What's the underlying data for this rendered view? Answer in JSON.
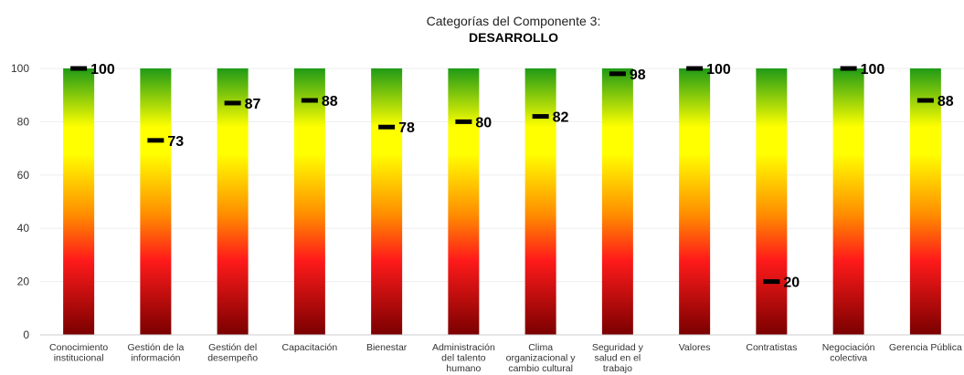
{
  "chart_data": {
    "type": "bar",
    "title": "Categorías del Componente 3:",
    "subtitle": "DESARROLLO",
    "xlabel": "",
    "ylabel": "",
    "ylim": [
      0,
      100
    ],
    "yticks": [
      0,
      20,
      40,
      60,
      80,
      100
    ],
    "grid": true,
    "legend": "none",
    "categories": [
      [
        "Conocimiento",
        "institucional"
      ],
      [
        "Gestión de la",
        "información"
      ],
      [
        "Gestión del",
        "desempeño"
      ],
      [
        "Capacitación"
      ],
      [
        "Bienestar"
      ],
      [
        "Administración",
        "del talento",
        "humano"
      ],
      [
        "Clima",
        "organizacional y",
        "cambio cultural"
      ],
      [
        "Seguridad y",
        "salud en el",
        "trabajo"
      ],
      [
        "Valores"
      ],
      [
        "Contratistas"
      ],
      [
        "Negociación",
        "colectiva"
      ],
      [
        "Gerencia Pública"
      ]
    ],
    "values": [
      100,
      73,
      87,
      88,
      78,
      80,
      82,
      98,
      100,
      20,
      100,
      88
    ],
    "value_labels": [
      "100",
      "73",
      "87",
      "88",
      "78",
      "80",
      "82",
      "98",
      "100",
      "20",
      "100",
      "88"
    ],
    "gradient_colors": {
      "top": "#1f9a16",
      "upper": "#ffff00",
      "middle": "#ff8c00",
      "lower": "#ff1a1a",
      "bottom": "#7a0000"
    },
    "marker_color": "#000000",
    "grid_color": "#eeeeee"
  }
}
